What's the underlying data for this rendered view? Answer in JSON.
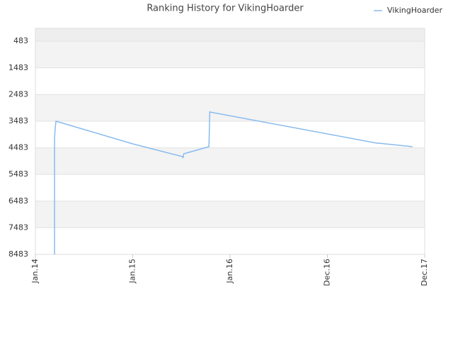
{
  "chart_data": {
    "type": "line",
    "title": "Ranking History for VikingHoarder",
    "x": [
      2.36,
      2.36,
      2.45,
      2.54,
      12,
      18.15,
      18.2,
      18.3,
      21.4,
      21.5,
      42.1,
      42.3,
      46.5
    ],
    "series": [
      {
        "name": "VikingHoarder",
        "color": "#88bbee",
        "values": [
          8483,
          4122,
          3723,
          3483,
          4335,
          4813,
          4866,
          4707,
          4441,
          3138,
          4308,
          4308,
          4441
        ]
      }
    ],
    "xlim": [
      0,
      48
    ],
    "xticks": [
      {
        "value": 0,
        "label": "Jan.14"
      },
      {
        "value": 12,
        "label": "Jan.15"
      },
      {
        "value": 24,
        "label": "Jan.16"
      },
      {
        "value": 36,
        "label": "Dec.16"
      },
      {
        "value": 48,
        "label": "Dec.17"
      }
    ],
    "ylim": [
      8483,
      0
    ],
    "yticks": [
      483,
      1483,
      2483,
      3483,
      4483,
      5483,
      6483,
      7483,
      8483
    ],
    "grid": true,
    "legend": "top-right"
  }
}
